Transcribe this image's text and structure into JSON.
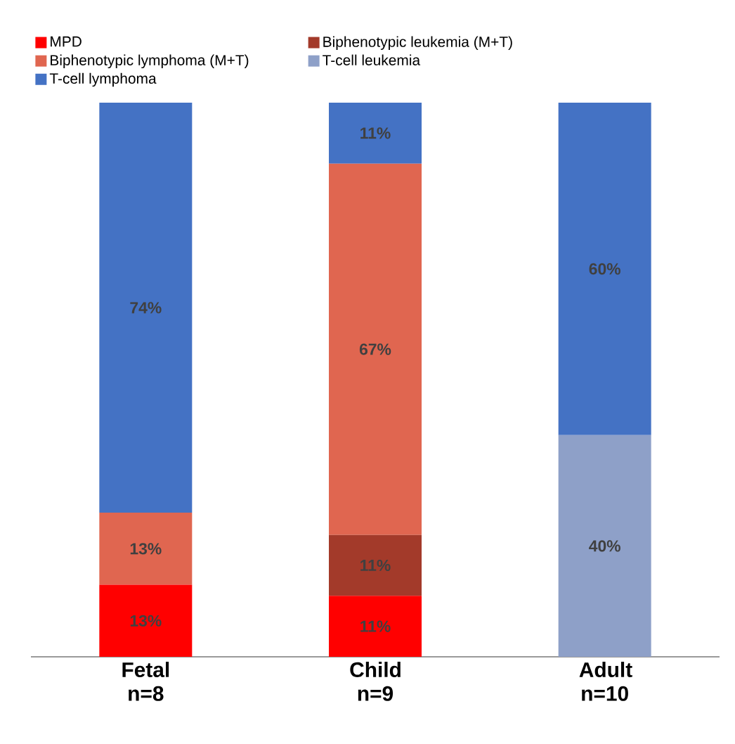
{
  "chart_data": {
    "type": "bar",
    "stacked": true,
    "categories": [
      "Fetal n=8",
      "Child n=9",
      "Adult n=10"
    ],
    "tick_labels": "x",
    "legend": "top",
    "series": [
      {
        "name": "MPD",
        "color": "#ff0000",
        "values": [
          13,
          11,
          0
        ],
        "value_labels": [
          "13%",
          "11%",
          null
        ]
      },
      {
        "name": "Biphenotypic leukemia (M+T)",
        "color": "#a33a2a",
        "values": [
          0,
          11,
          0
        ],
        "value_labels": [
          null,
          "11%",
          null
        ]
      },
      {
        "name": "Biphenotypic lymphoma (M+T)",
        "color": "#e06650",
        "values": [
          13,
          67,
          0
        ],
        "value_labels": [
          "13%",
          "67%",
          null
        ]
      },
      {
        "name": "T-cell leukemia",
        "color": "#8ea0c8",
        "values": [
          0,
          0,
          40
        ],
        "value_labels": [
          null,
          null,
          "40%"
        ]
      },
      {
        "name": "T-cell lymphoma",
        "color": "#4472c4",
        "values": [
          74,
          11,
          60
        ],
        "value_labels": [
          "74%",
          "11%",
          "60%"
        ]
      }
    ]
  }
}
